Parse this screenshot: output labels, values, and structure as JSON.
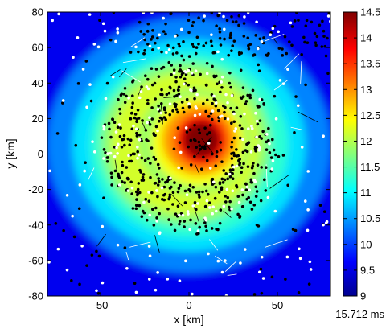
{
  "chart_data": {
    "type": "heatmap",
    "title": "",
    "xlabel": "x [km]",
    "ylabel": "y [km]",
    "xlim": [
      -80,
      80
    ],
    "ylim": [
      -80,
      80
    ],
    "xticks": [
      -50,
      0,
      50
    ],
    "yticks": [
      -80,
      -60,
      -40,
      -20,
      0,
      20,
      40,
      60,
      80
    ],
    "colorbar": {
      "range": [
        9,
        14.5
      ],
      "ticks": [
        9,
        9.5,
        10,
        10.5,
        11,
        11.5,
        12,
        12.5,
        13,
        13.5,
        14,
        14.5
      ],
      "colormap": "jet"
    },
    "annotation": "15.712 ms",
    "features": {
      "peak_value": 14.5,
      "peak_center": [
        7,
        8
      ],
      "peak_radius_km": 15,
      "ring_value": 12.2,
      "ring_radius_km": 38,
      "background_value": 9.6
    },
    "markers": {
      "black_points": "numerous scattered particles, densest on the ring around the centre and in the upper band",
      "white_points": "scattered particles, many in the outer region",
      "colors": {
        "black": "#000000",
        "white": "#ffffff"
      }
    }
  }
}
